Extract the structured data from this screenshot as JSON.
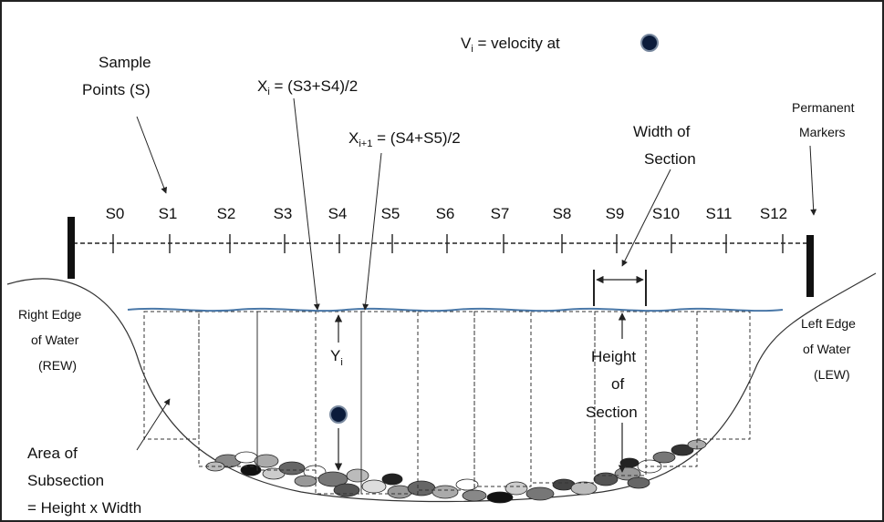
{
  "labels": {
    "sample_points": [
      "Sample",
      "Points (S)"
    ],
    "velocity": "V",
    "velocity_sub": "i",
    "velocity_rest": " = velocity at",
    "xi_main": "X",
    "xi_sub": "i",
    "xi_rest": " = (S3+S4)/2",
    "xi1_main": "X",
    "xi1_sub": "i+1",
    "xi1_rest": " = (S4+S5)/2",
    "width_of_section": [
      "Width of",
      "Section"
    ],
    "permanent_markers": [
      "Permanent",
      "Markers"
    ],
    "right_edge": [
      "Right Edge",
      "of Water",
      "(REW)"
    ],
    "left_edge": [
      "Left Edge",
      "of Water",
      "(LEW)"
    ],
    "yi_main": "Y",
    "yi_sub": "i",
    "height_of_section": [
      "Height",
      "of",
      "Section"
    ],
    "area_of_subsection": [
      "Area of",
      "Subsection",
      "= Height x Width"
    ]
  },
  "stations": [
    "S0",
    "S1",
    "S2",
    "S3",
    "S4",
    "S5",
    "S6",
    "S7",
    "S8",
    "S9",
    "S10",
    "S11",
    "S12"
  ],
  "colors": {
    "water_line": "#4a78a8",
    "velocity_dot": "#0b1b3a",
    "line": "#222222"
  }
}
